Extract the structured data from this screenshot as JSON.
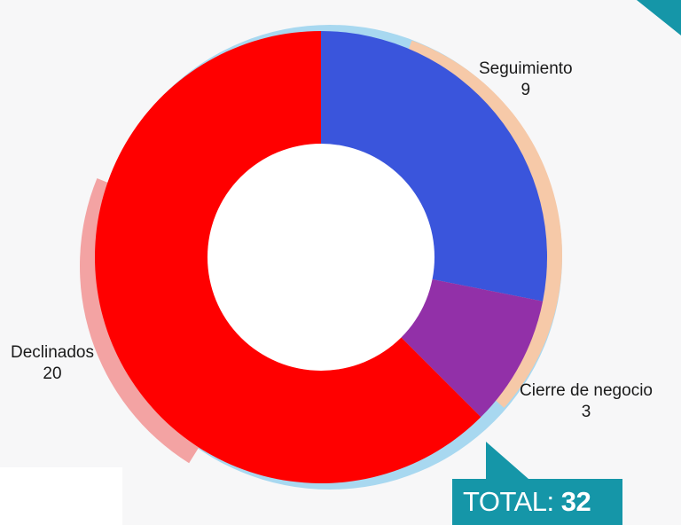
{
  "chart_data": {
    "type": "pie",
    "donut": true,
    "categories": [
      "Seguimiento",
      "Cierre de negocio",
      "Declinados"
    ],
    "values": [
      9,
      3,
      20
    ],
    "colors": [
      "#3a55dc",
      "#9230a8",
      "#ff0000"
    ],
    "label_values": [
      "9",
      "3",
      "20"
    ]
  },
  "total": {
    "label": "TOTAL:",
    "value": "32"
  },
  "accent_color": "#1596a8"
}
